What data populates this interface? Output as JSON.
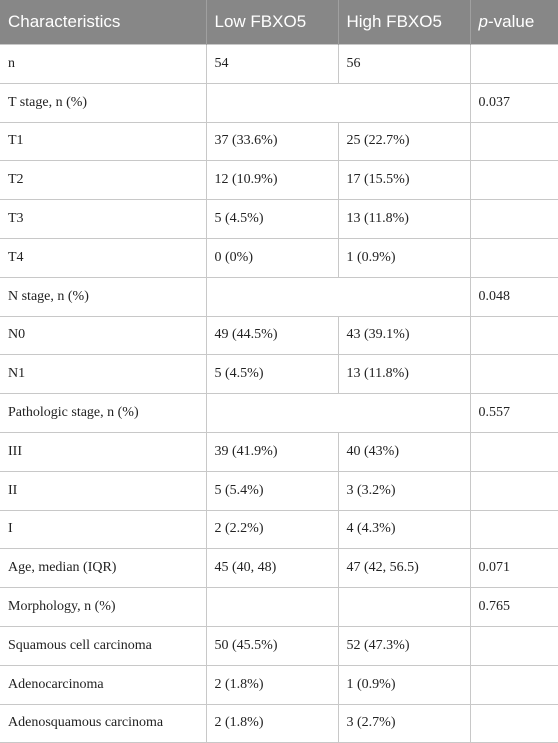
{
  "table": {
    "header": [
      "Characteristics",
      "Low FBXO5",
      "High FBXO5",
      "p-value"
    ],
    "rows": [
      {
        "label": "n",
        "low": "54",
        "high": "56"
      },
      {
        "label": "T stage, n (%)",
        "p": "0.037"
      },
      {
        "label": "T1",
        "low": "37 (33.6%)",
        "high": "25 (22.7%)"
      },
      {
        "label": "T2",
        "low": "12 (10.9%)",
        "high": "17 (15.5%)"
      },
      {
        "label": "T3",
        "low": "5 (4.5%)",
        "high": "13 (11.8%)"
      },
      {
        "label": "T4",
        "low": "0 (0%)",
        "high": "1 (0.9%)"
      },
      {
        "label": "N stage, n (%)",
        "p": "0.048"
      },
      {
        "label": "N0",
        "low": "49 (44.5%)",
        "high": "43 (39.1%)"
      },
      {
        "label": "N1",
        "low": "5 (4.5%)",
        "high": "13 (11.8%)"
      },
      {
        "label": "Pathologic stage, n (%)",
        "p": "0.557"
      },
      {
        "label": "III",
        "low": "39 (41.9%)",
        "high": "40 (43%)"
      },
      {
        "label": "II",
        "low": "5 (5.4%)",
        "high": "3 (3.2%)"
      },
      {
        "label": "I",
        "low": "2 (2.2%)",
        "high": "4 (4.3%)"
      },
      {
        "label": "Age, median (IQR)",
        "low": "45 (40, 48)",
        "high": "47 (42, 56.5)",
        "p": "0.071"
      },
      {
        "label": "Morphology, n (%)",
        "p": "0.765"
      },
      {
        "label": "Squamous cell carcinoma",
        "low": "50 (45.5%)",
        "high": "52 (47.3%)"
      },
      {
        "label": "Adenocarcinoma",
        "low": "2 (1.8%)",
        "high": "1 (0.9%)"
      },
      {
        "label": "Adenosquamous carcinoma",
        "low": "2 (1.8%)",
        "high": "3 (2.7%)"
      }
    ]
  }
}
